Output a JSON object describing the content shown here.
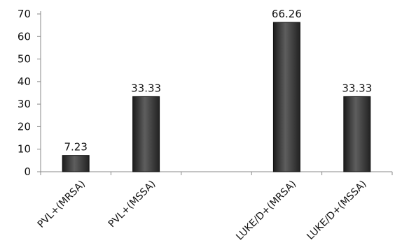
{
  "chart_data": {
    "type": "bar",
    "categories": [
      "PVL+(MRSA)",
      "PVL+(MSSA)",
      "",
      "LUKE/D+(MRSA)",
      "LUKE/D+(MSSA)"
    ],
    "values": [
      7.23,
      33.33,
      null,
      66.26,
      33.33
    ],
    "data_labels": [
      "7.23",
      "33.33",
      "",
      "66.26",
      "33.33"
    ],
    "title": "",
    "xlabel": "",
    "ylabel": "",
    "ylim": [
      0,
      70
    ],
    "yticks": [
      0,
      10,
      20,
      30,
      40,
      50,
      60,
      70
    ],
    "grid": false,
    "legend": "none",
    "bar_color": "#3a3a3a"
  }
}
